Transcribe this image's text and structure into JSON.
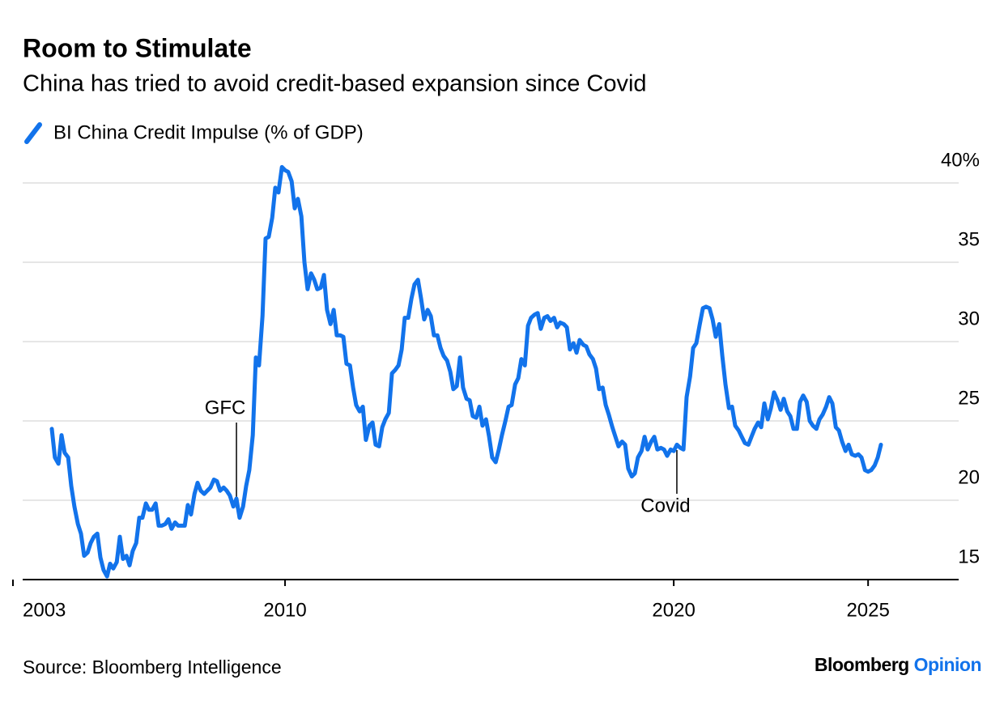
{
  "chart_data": {
    "type": "line",
    "title": "Room to Stimulate",
    "subtitle": "China has tried to avoid credit-based expansion since Covid",
    "source": "Source: Bloomberg Intelligence",
    "brand": "Bloomberg",
    "brand_suffix": "Opinion",
    "annotations": [
      {
        "text": "GFC",
        "x": 2008.75
      },
      {
        "text": "Covid",
        "x": 2020.08
      }
    ],
    "xlim": [
      2003,
      2027.33
    ],
    "xticks": [
      2003,
      2010,
      2020,
      2025
    ],
    "ylim": [
      15,
      41.5
    ],
    "yticks": [
      15,
      20,
      25,
      30,
      35,
      {
        "value": 40,
        "label": "40%"
      }
    ],
    "grid": true,
    "x": [
      2004,
      2004.08,
      2004.17,
      2004.25,
      2004.33,
      2004.42,
      2004.5,
      2004.58,
      2004.67,
      2004.75,
      2004.83,
      2004.92,
      2005,
      2005.08,
      2005.17,
      2005.25,
      2005.33,
      2005.42,
      2005.5,
      2005.58,
      2005.67,
      2005.75,
      2005.83,
      2005.92,
      2006,
      2006.08,
      2006.17,
      2006.25,
      2006.33,
      2006.42,
      2006.5,
      2006.58,
      2006.67,
      2006.75,
      2006.83,
      2006.92,
      2007,
      2007.08,
      2007.17,
      2007.25,
      2007.33,
      2007.42,
      2007.5,
      2007.58,
      2007.67,
      2007.75,
      2007.83,
      2007.92,
      2008,
      2008.08,
      2008.17,
      2008.25,
      2008.33,
      2008.42,
      2008.5,
      2008.58,
      2008.67,
      2008.75,
      2008.83,
      2008.92,
      2009,
      2009.08,
      2009.17,
      2009.25,
      2009.33,
      2009.42,
      2009.5,
      2009.58,
      2009.67,
      2009.75,
      2009.83,
      2009.92,
      2010,
      2010.08,
      2010.17,
      2010.25,
      2010.33,
      2010.42,
      2010.5,
      2010.58,
      2010.67,
      2010.75,
      2010.83,
      2010.92,
      2011,
      2011.08,
      2011.17,
      2011.25,
      2011.33,
      2011.42,
      2011.5,
      2011.58,
      2011.67,
      2011.75,
      2011.83,
      2011.92,
      2012,
      2012.08,
      2012.17,
      2012.25,
      2012.33,
      2012.42,
      2012.5,
      2012.58,
      2012.67,
      2012.75,
      2012.83,
      2012.92,
      2013,
      2013.08,
      2013.17,
      2013.25,
      2013.33,
      2013.42,
      2013.5,
      2013.58,
      2013.67,
      2013.75,
      2013.83,
      2013.92,
      2014,
      2014.08,
      2014.17,
      2014.25,
      2014.33,
      2014.42,
      2014.5,
      2014.58,
      2014.67,
      2014.75,
      2014.83,
      2014.92,
      2015,
      2015.08,
      2015.17,
      2015.25,
      2015.33,
      2015.42,
      2015.5,
      2015.58,
      2015.67,
      2015.75,
      2015.83,
      2015.92,
      2016,
      2016.08,
      2016.17,
      2016.25,
      2016.33,
      2016.42,
      2016.5,
      2016.58,
      2016.67,
      2016.75,
      2016.83,
      2016.92,
      2017,
      2017.08,
      2017.17,
      2017.25,
      2017.33,
      2017.42,
      2017.5,
      2017.58,
      2017.67,
      2017.75,
      2017.83,
      2017.92,
      2018,
      2018.08,
      2018.17,
      2018.25,
      2018.33,
      2018.42,
      2018.5,
      2018.58,
      2018.67,
      2018.75,
      2018.83,
      2018.92,
      2019,
      2019.08,
      2019.17,
      2019.25,
      2019.33,
      2019.42,
      2019.5,
      2019.58,
      2019.67,
      2019.75,
      2019.83,
      2019.92,
      2020,
      2020.08,
      2020.17,
      2020.25,
      2020.33,
      2020.42,
      2020.5,
      2020.58,
      2020.67,
      2020.75,
      2020.83,
      2020.92,
      2021,
      2021.08,
      2021.17,
      2021.25,
      2021.33,
      2021.42,
      2021.5,
      2021.58,
      2021.67,
      2021.75,
      2021.83,
      2021.92,
      2022,
      2022.08,
      2022.17,
      2022.25,
      2022.33,
      2022.42,
      2022.5,
      2022.58,
      2022.67,
      2022.75,
      2022.83,
      2022.92,
      2023,
      2023.08,
      2023.17,
      2023.25,
      2023.33,
      2023.42,
      2023.5,
      2023.58,
      2023.67,
      2023.75,
      2023.83,
      2023.92,
      2024,
      2024.08,
      2024.17,
      2024.25,
      2024.33,
      2024.42,
      2024.5,
      2024.58,
      2024.67,
      2024.75,
      2024.83,
      2024.92,
      2025,
      2025.08,
      2025.17,
      2025.25,
      2025.33
    ],
    "series": [
      {
        "name": "BI China Credit Impulse (% of GDP)",
        "color": "#1273eb",
        "values": [
          24.5,
          22.7,
          22.3,
          24.1,
          23.0,
          22.7,
          20.9,
          19.6,
          18.5,
          17.9,
          16.5,
          16.7,
          17.3,
          17.7,
          17.9,
          16.4,
          15.6,
          15.2,
          16.0,
          15.7,
          16.1,
          17.7,
          16.3,
          16.5,
          15.9,
          16.8,
          17.3,
          18.9,
          18.9,
          19.8,
          19.4,
          19.4,
          19.8,
          18.4,
          18.4,
          18.5,
          18.8,
          18.2,
          18.6,
          18.4,
          18.4,
          18.4,
          19.7,
          19.1,
          20.4,
          21.1,
          20.6,
          20.4,
          20.6,
          20.8,
          21.3,
          21.2,
          20.6,
          20.8,
          20.6,
          20.3,
          19.6,
          20.1,
          18.9,
          19.6,
          20.9,
          21.9,
          24.1,
          29.0,
          28.5,
          31.6,
          36.5,
          36.6,
          37.8,
          39.7,
          39.4,
          41.0,
          40.8,
          40.7,
          40.1,
          38.4,
          39.0,
          37.9,
          35.0,
          33.3,
          34.3,
          33.9,
          33.3,
          33.4,
          34.2,
          32.0,
          31.1,
          32.0,
          30.4,
          30.4,
          30.3,
          28.6,
          28.5,
          27.1,
          26.0,
          25.6,
          25.9,
          23.8,
          24.7,
          24.9,
          23.5,
          23.4,
          24.6,
          25.1,
          25.5,
          28.0,
          28.2,
          28.5,
          29.5,
          31.5,
          31.5,
          32.7,
          33.6,
          33.9,
          32.7,
          31.4,
          32.0,
          31.6,
          30.4,
          30.4,
          29.6,
          29.1,
          28.8,
          28.1,
          27.0,
          27.2,
          29.0,
          27.1,
          26.4,
          26.3,
          25.3,
          25.2,
          25.9,
          24.7,
          25.1,
          24.0,
          22.7,
          22.4,
          23.2,
          24.1,
          25.0,
          25.9,
          26.0,
          27.3,
          27.7,
          28.9,
          28.5,
          31.0,
          31.5,
          31.7,
          31.8,
          30.8,
          31.5,
          31.6,
          31.3,
          31.5,
          30.9,
          31.2,
          31.1,
          30.9,
          29.5,
          29.9,
          29.3,
          30.1,
          29.8,
          29.7,
          29.2,
          28.9,
          28.3,
          27.0,
          27.1,
          26.0,
          25.4,
          24.6,
          24.0,
          23.4,
          23.7,
          23.5,
          22.0,
          21.5,
          21.7,
          22.7,
          23.1,
          24.0,
          23.2,
          23.7,
          24.0,
          23.2,
          23.3,
          23.2,
          22.8,
          23.2,
          23.1,
          23.5,
          23.3,
          23.2,
          26.5,
          27.8,
          29.6,
          29.9,
          31.1,
          32.1,
          32.2,
          32.1,
          31.4,
          30.3,
          31.1,
          29.1,
          27.3,
          25.8,
          25.9,
          24.7,
          24.4,
          24.0,
          23.6,
          23.5,
          24.0,
          24.5,
          24.9,
          24.6,
          26.1,
          25.1,
          25.8,
          26.8,
          26.3,
          25.7,
          26.4,
          25.6,
          25.3,
          24.5,
          24.5,
          26.2,
          26.6,
          26.2,
          25.0,
          24.7,
          24.5,
          25.1,
          25.4,
          25.9,
          26.5,
          26.1,
          24.6,
          24.4,
          23.7,
          23.1,
          23.5,
          22.9,
          22.8,
          22.9,
          22.7,
          21.9,
          21.8,
          21.9,
          22.2,
          22.7,
          23.5
        ]
      }
    ]
  }
}
